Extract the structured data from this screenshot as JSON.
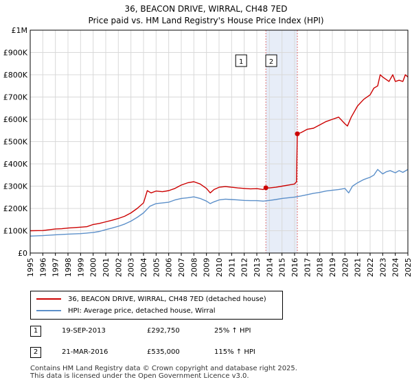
{
  "title_line1": "36, BEACON DRIVE, WIRRAL, CH48 7ED",
  "title_line2": "Price paid vs. HM Land Registry's House Price Index (HPI)",
  "chart_data": {
    "type": "line",
    "x_range": [
      1995,
      2025
    ],
    "ylim": [
      0,
      1000000
    ],
    "y_ticks": [
      {
        "value": 0,
        "label": "£0"
      },
      {
        "value": 100000,
        "label": "£100K"
      },
      {
        "value": 200000,
        "label": "£200K"
      },
      {
        "value": 300000,
        "label": "£300K"
      },
      {
        "value": 400000,
        "label": "£400K"
      },
      {
        "value": 500000,
        "label": "£500K"
      },
      {
        "value": 600000,
        "label": "£600K"
      },
      {
        "value": 700000,
        "label": "£700K"
      },
      {
        "value": 800000,
        "label": "£800K"
      },
      {
        "value": 900000,
        "label": "£900K"
      },
      {
        "value": 1000000,
        "label": "£1M"
      }
    ],
    "x_ticks": [
      "1995",
      "1996",
      "1997",
      "1998",
      "1999",
      "2000",
      "2001",
      "2002",
      "2003",
      "2004",
      "2005",
      "2006",
      "2007",
      "2008",
      "2009",
      "2010",
      "2011",
      "2012",
      "2013",
      "2014",
      "2015",
      "2016",
      "2017",
      "2018",
      "2019",
      "2020",
      "2021",
      "2022",
      "2023",
      "2024",
      "2025"
    ],
    "grid": true,
    "series": [
      {
        "name": "36, BEACON DRIVE, WIRRAL, CH48 7ED (detached house)",
        "color": "#cc0000",
        "x": [
          1995.0,
          1996.0,
          1997.0,
          1997.5,
          1998.0,
          1999.0,
          1999.5,
          2000.0,
          2000.5,
          2001.0,
          2001.5,
          2002.0,
          2002.5,
          2003.0,
          2003.5,
          2004.0,
          2004.3,
          2004.6,
          2005.0,
          2005.5,
          2006.0,
          2006.5,
          2007.0,
          2007.5,
          2008.0,
          2008.5,
          2009.0,
          2009.3,
          2009.6,
          2010.0,
          2010.5,
          2011.0,
          2011.5,
          2012.0,
          2012.5,
          2013.0,
          2013.5,
          2013.72,
          2014.0,
          2014.5,
          2015.0,
          2015.5,
          2016.0,
          2016.15,
          2016.22,
          2016.5,
          2017.0,
          2017.5,
          2018.0,
          2018.5,
          2019.0,
          2019.5,
          2020.0,
          2020.2,
          2020.5,
          2021.0,
          2021.5,
          2022.0,
          2022.3,
          2022.6,
          2022.8,
          2023.0,
          2023.5,
          2023.8,
          2024.0,
          2024.3,
          2024.6,
          2024.8,
          2025.0
        ],
        "y": [
          100000,
          101000,
          108000,
          109000,
          112000,
          116000,
          118000,
          128000,
          133000,
          140000,
          147000,
          155000,
          165000,
          180000,
          200000,
          225000,
          280000,
          270000,
          278000,
          275000,
          280000,
          290000,
          305000,
          315000,
          320000,
          310000,
          290000,
          270000,
          285000,
          295000,
          298000,
          295000,
          292000,
          290000,
          288000,
          289000,
          285000,
          292750,
          292000,
          295000,
          300000,
          305000,
          310000,
          320000,
          535000,
          540000,
          555000,
          560000,
          575000,
          590000,
          600000,
          610000,
          580000,
          570000,
          610000,
          660000,
          690000,
          710000,
          740000,
          750000,
          800000,
          790000,
          770000,
          800000,
          770000,
          775000,
          770000,
          800000,
          790000
        ]
      },
      {
        "name": "HPI: Average price, detached house, Wirral",
        "color": "#5b8fc9",
        "x": [
          1995.0,
          1996.0,
          1997.0,
          1998.0,
          1999.0,
          2000.0,
          2000.5,
          2001.0,
          2001.5,
          2002.0,
          2002.5,
          2003.0,
          2003.5,
          2004.0,
          2004.5,
          2005.0,
          2005.5,
          2006.0,
          2006.5,
          2007.0,
          2007.5,
          2008.0,
          2008.5,
          2009.0,
          2009.3,
          2009.6,
          2010.0,
          2010.5,
          2011.0,
          2011.5,
          2012.0,
          2012.5,
          2013.0,
          2013.5,
          2014.0,
          2014.5,
          2015.0,
          2015.5,
          2016.0,
          2016.5,
          2017.0,
          2017.5,
          2018.0,
          2018.5,
          2019.0,
          2019.5,
          2020.0,
          2020.3,
          2020.6,
          2021.0,
          2021.5,
          2022.0,
          2022.3,
          2022.6,
          2023.0,
          2023.3,
          2023.6,
          2024.0,
          2024.3,
          2024.6,
          2025.0
        ],
        "y": [
          76000,
          78000,
          82000,
          85000,
          87000,
          92000,
          97000,
          105000,
          112000,
          120000,
          130000,
          143000,
          160000,
          180000,
          210000,
          222000,
          225000,
          228000,
          238000,
          245000,
          248000,
          252000,
          245000,
          233000,
          222000,
          230000,
          238000,
          242000,
          240000,
          238000,
          236000,
          235000,
          235000,
          233000,
          236000,
          240000,
          245000,
          248000,
          251000,
          256000,
          262000,
          268000,
          272000,
          278000,
          282000,
          285000,
          290000,
          270000,
          300000,
          315000,
          330000,
          340000,
          350000,
          375000,
          355000,
          365000,
          370000,
          360000,
          370000,
          362000,
          375000
        ]
      }
    ],
    "markers": [
      {
        "label": "1",
        "x": 2013.72,
        "y": 292750
      },
      {
        "label": "2",
        "x": 2016.22,
        "y": 535000
      }
    ],
    "shaded_range": [
      2013.72,
      2016.22
    ]
  },
  "legend": {
    "items": [
      {
        "label": "36, BEACON DRIVE, WIRRAL, CH48 7ED (detached house)",
        "color": "#cc0000"
      },
      {
        "label": "HPI: Average price, detached house, Wirral",
        "color": "#5b8fc9"
      }
    ]
  },
  "transactions": [
    {
      "num": "1",
      "date": "19-SEP-2013",
      "price": "£292,750",
      "hpi": "25% ↑ HPI"
    },
    {
      "num": "2",
      "date": "21-MAR-2016",
      "price": "£535,000",
      "hpi": "115% ↑ HPI"
    }
  ],
  "footer": {
    "line1": "Contains HM Land Registry data © Crown copyright and database right 2025.",
    "line2": "This data is licensed under the Open Government Licence v3.0."
  }
}
